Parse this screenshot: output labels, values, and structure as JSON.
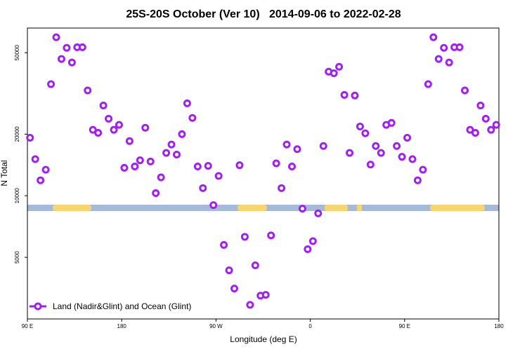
{
  "chart_data": {
    "type": "scatter",
    "title": "25S-20S October (Ver 10)   2014-09-06 to 2022-02-28",
    "xlabel": "Longitude (deg E)",
    "ylabel": "N Total",
    "xlim": [
      90,
      540
    ],
    "xticks": [
      {
        "value": 90,
        "label": "90 E"
      },
      180,
      {
        "value": 270,
        "label": "90 W"
      },
      {
        "value": 360,
        "label": "0"
      },
      {
        "value": 450,
        "label": "90 E"
      },
      {
        "value": 540,
        "label": "180"
      }
    ],
    "ylim": [
      2500,
      66000
    ],
    "yticks": [
      5000,
      10000,
      20000,
      50000
    ],
    "log_y": true,
    "legend": "bottom-left",
    "series": [
      {
        "name": "Land (Nadir&Glint) and Ocean (Glint)",
        "color": "#a020f0",
        "x": [
          92.5,
          97.5,
          102.5,
          107.5,
          112.5,
          117.5,
          122.5,
          127.5,
          132.5,
          137.5,
          142.5,
          147.5,
          152.5,
          157.5,
          162.5,
          167.5,
          172.5,
          177.5,
          182.5,
          187.5,
          192.5,
          197.5,
          202.5,
          207.5,
          212.5,
          217.5,
          222.5,
          227.5,
          232.5,
          237.5,
          242.5,
          247.5,
          252.5,
          257.5,
          262.5,
          267.5,
          272.5,
          277.5,
          282.5,
          287.5,
          292.5,
          297.5,
          302.5,
          307.5,
          312.5,
          317.5,
          322.5,
          327.5,
          332.5,
          337.5,
          342.5,
          347.5,
          352.5,
          357.5,
          362.5,
          367.5,
          372.5,
          377.5,
          382.5,
          387.5,
          392.5,
          397.5,
          402.5,
          407.5,
          412.5,
          417.5,
          422.5,
          427.5,
          432.5,
          437.5,
          442.5,
          447.5,
          452.5,
          457.5,
          462.5,
          467.5,
          472.5,
          477.5,
          482.5,
          487.5,
          492.5,
          497.5,
          502.5,
          507.5,
          512.5,
          517.5,
          522.5,
          527.5,
          532.5,
          537.5
        ],
        "values": [
          19200,
          15100,
          11900,
          13400,
          35100,
          59500,
          46600,
          52800,
          44800,
          53200,
          53200,
          32700,
          21000,
          20300,
          27600,
          23800,
          21000,
          22200,
          13700,
          18500,
          13900,
          14900,
          21500,
          14700,
          10300,
          12300,
          16200,
          17800,
          15900,
          20000,
          28300,
          24000,
          13900,
          10900,
          14000,
          9000,
          12500,
          5750,
          4320,
          3520,
          14100,
          6300,
          2930,
          4570,
          3250,
          3280,
          6400,
          14400,
          10900,
          17800,
          13900,
          16900,
          8650,
          5480,
          6000,
          8200,
          17500,
          40400,
          39700,
          42700,
          31100,
          16200,
          30900,
          21800,
          20200,
          14200,
          17500,
          16200,
          22200,
          22700,
          17500,
          15500,
          19200,
          15100,
          11900,
          13400,
          35100,
          59500,
          46600,
          52800,
          44800,
          53200,
          53200,
          32700,
          21000,
          20300,
          27600,
          23800,
          21000,
          22200
        ]
      }
    ]
  }
}
